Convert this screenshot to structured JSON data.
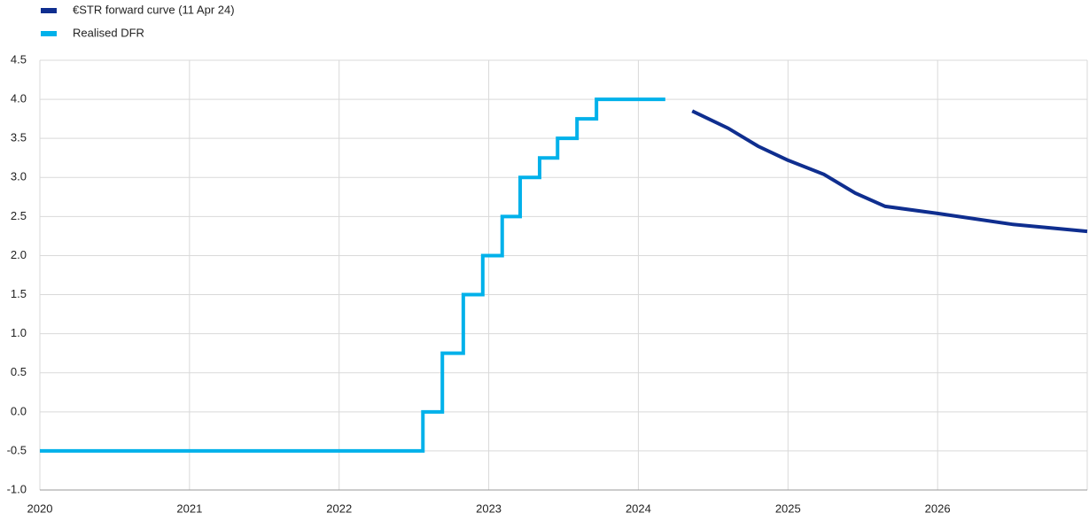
{
  "chart_data": {
    "type": "line",
    "xlim": [
      2020,
      2027
    ],
    "xticks": [
      2020,
      2021,
      2022,
      2023,
      2024,
      2025,
      2026
    ],
    "ylim": [
      -1.0,
      4.5
    ],
    "yticks": [
      {
        "value": -1.0,
        "label": "-1.0"
      },
      {
        "value": -0.5,
        "label": "-0.5"
      },
      {
        "value": 0,
        "label": "0.0"
      },
      {
        "value": 0.5,
        "label": "0.5"
      },
      {
        "value": 1.0,
        "label": "1.0"
      },
      {
        "value": 1.5,
        "label": "1.5"
      },
      {
        "value": 2.0,
        "label": "2.0"
      },
      {
        "value": 2.5,
        "label": "2.5"
      },
      {
        "value": 3.0,
        "label": "3.0"
      },
      {
        "value": 3.5,
        "label": "3.5"
      },
      {
        "value": 4.0,
        "label": "4.0"
      },
      {
        "value": 4.5,
        "label": "4.5"
      }
    ],
    "grid": true,
    "legend": "top-left",
    "series": [
      {
        "name": "€STR forward curve (11 Apr 24)",
        "color": "#0f2e8f",
        "x": [
          2024.36,
          2024.6,
          2024.8,
          2025.0,
          2025.24,
          2025.45,
          2025.65,
          2026.0,
          2026.5,
          2027.0
        ],
        "values": [
          3.85,
          3.63,
          3.4,
          3.22,
          3.04,
          2.8,
          2.63,
          2.54,
          2.4,
          2.31
        ]
      },
      {
        "name": "Realised DFR",
        "color": "#00b1ea",
        "x": [
          2020,
          2022.56,
          2022.56,
          2022.69,
          2022.69,
          2022.83,
          2022.83,
          2022.96,
          2022.96,
          2023.09,
          2023.09,
          2023.21,
          2023.21,
          2023.34,
          2023.34,
          2023.46,
          2023.46,
          2023.59,
          2023.59,
          2023.72,
          2023.72,
          2024.18
        ],
        "values": [
          -0.5,
          -0.5,
          0,
          0,
          0.75,
          0.75,
          1.5,
          1.5,
          2.0,
          2.0,
          2.5,
          2.5,
          3.0,
          3.0,
          3.25,
          3.25,
          3.5,
          3.5,
          3.75,
          3.75,
          4.0,
          4.0
        ]
      }
    ]
  }
}
